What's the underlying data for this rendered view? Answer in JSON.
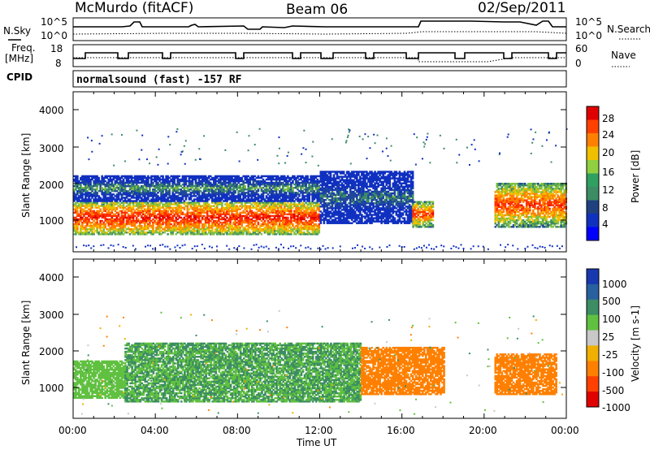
{
  "header": {
    "station": "McMurdo (fitACF)",
    "beam": "Beam 06",
    "date": "02/Sep/2011"
  },
  "top_panels": {
    "nsky_label": "N.Sky",
    "nsky_ticks": [
      "10^5",
      "10^0"
    ],
    "nsearch_label": "N.Search",
    "nsearch_ticks": [
      "10^5",
      "10^0"
    ],
    "freq_label_line1": "Freq.",
    "freq_label_line2": "[MHz]",
    "freq_ticks": [
      "18",
      "8"
    ],
    "nave_label": "Nave",
    "nave_ticks": [
      "60",
      "0"
    ],
    "cpid_label": "CPID",
    "cpid_text": "normalsound (fast) -157 RF"
  },
  "power_panel": {
    "ylabel": "Slant Range [km]",
    "yticks": [
      "4000",
      "3000",
      "2000",
      "1000"
    ],
    "colorbar_label": "Power [dB]",
    "colorbar_ticks": [
      "28",
      "24",
      "20",
      "16",
      "12",
      "8",
      "4"
    ],
    "colorbar_colors": [
      "#e00000",
      "#ff4000",
      "#ff8000",
      "#f0c000",
      "#90d040",
      "#30a060",
      "#3c8c64",
      "#204080",
      "#1030c0",
      "#0000ff"
    ]
  },
  "velocity_panel": {
    "ylabel": "Slant Range [km]",
    "yticks": [
      "4000",
      "3000",
      "2000",
      "1000"
    ],
    "colorbar_label": "Velocity [m s-1]",
    "colorbar_ticks": [
      "1000",
      "500",
      "100",
      "25",
      "-25",
      "-100",
      "-500",
      "-1000"
    ],
    "colorbar_colors": [
      "#1838b0",
      "#2860a0",
      "#3c8c64",
      "#60c040",
      "#c8c8c8",
      "#f0b000",
      "#ff8000",
      "#ff4000",
      "#e00000"
    ]
  },
  "xaxis": {
    "label": "Time UT",
    "ticks": [
      "00:00",
      "04:00",
      "08:00",
      "12:00",
      "16:00",
      "20:00",
      "00:00"
    ]
  },
  "chart_data": {
    "type": "heatmap",
    "title": "McMurdo (fitACF) Beam 06 02/Sep/2011",
    "xlabel": "Time UT",
    "ylabel": "Slant Range [km]",
    "xlim": [
      "00:00",
      "24:00"
    ],
    "ylim": [
      180,
      4600
    ],
    "power_scale_db": [
      4,
      8,
      12,
      16,
      20,
      24,
      28
    ],
    "velocity_scale_ms": [
      -1000,
      -500,
      -100,
      -25,
      25,
      100,
      500,
      1000
    ],
    "power_regions": [
      {
        "t0": 0.0,
        "t1": 12.0,
        "r0": 600,
        "r1": 1500,
        "level": "high",
        "value_db": 26
      },
      {
        "t0": 0.0,
        "t1": 12.0,
        "r0": 1500,
        "r1": 2200,
        "level": "medium",
        "value_db": 12
      },
      {
        "t0": 12.0,
        "t1": 16.5,
        "r0": 900,
        "r1": 2300,
        "level": "medium",
        "value_db": 10
      },
      {
        "t0": 16.5,
        "t1": 17.5,
        "r0": 800,
        "r1": 1500,
        "level": "high",
        "value_db": 24
      },
      {
        "t0": 20.5,
        "t1": 24.0,
        "r0": 800,
        "r1": 2000,
        "level": "high",
        "value_db": 24
      }
    ],
    "velocity_regions": [
      {
        "t0": 0.0,
        "t1": 2.5,
        "r0": 700,
        "r1": 1700,
        "value_ms": 100
      },
      {
        "t0": 2.5,
        "t1": 14.0,
        "r0": 600,
        "r1": 2200,
        "value_ms": 300
      },
      {
        "t0": 14.0,
        "t1": 18.0,
        "r0": 800,
        "r1": 2100,
        "value_ms": -150
      },
      {
        "t0": 20.5,
        "t1": 23.5,
        "r0": 800,
        "r1": 1900,
        "value_ms": -150
      }
    ]
  }
}
